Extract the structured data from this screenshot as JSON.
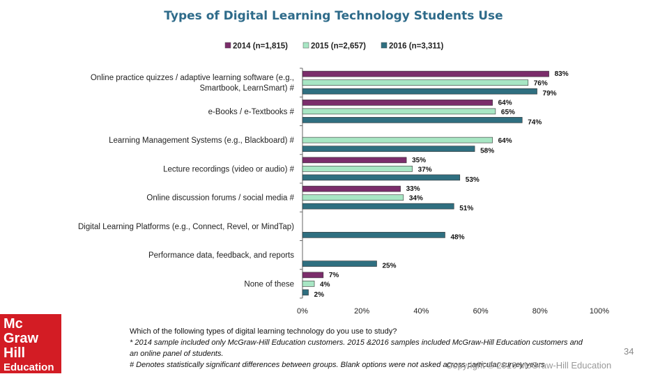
{
  "chart_data": {
    "type": "bar",
    "orientation": "horizontal",
    "title": "Types of Digital Learning Technology Students Use",
    "categories": [
      [
        "Online practice quizzes / adaptive learning software (e.g.,",
        "Smartbook, LearnSmart) #"
      ],
      [
        "e-Books / e-Textbooks #"
      ],
      [
        "Learning Management Systems (e.g., Blackboard) #"
      ],
      [
        "Lecture recordings (video or audio) #"
      ],
      [
        "Online discussion forums / social media #"
      ],
      [
        "Digital Learning Platforms (e.g., Connect, Revel, or MindTap)"
      ],
      [
        "Performance data, feedback, and reports"
      ],
      [
        "None of these"
      ]
    ],
    "series": [
      {
        "name": "2014 (n=1,815)",
        "color": "#7b2d6b",
        "values": [
          83,
          64,
          null,
          35,
          33,
          null,
          null,
          7
        ]
      },
      {
        "name": "2015 (n=2,657)",
        "color": "#a8e6c4",
        "values": [
          76,
          65,
          64,
          37,
          34,
          null,
          null,
          4
        ]
      },
      {
        "name": "2016 (n=3,311)",
        "color": "#2f6f80",
        "values": [
          79,
          74,
          58,
          53,
          51,
          48,
          25,
          2
        ]
      }
    ],
    "xlim": [
      0,
      100
    ],
    "xticks": [
      "0%",
      "20%",
      "40%",
      "60%",
      "80%",
      "100%"
    ],
    "value_suffix": "%",
    "legend_position": "top",
    "grid": false
  },
  "footnotes": {
    "question": "Which of the following types of  digital learning technology do you use to study?",
    "note1": "* 2014 sample included only McGraw-Hill Education customers. 2015 &2016 samples included McGraw-Hill Education customers and an online panel of students.",
    "note2": "# Denotes statistically significant differences between groups. Blank options were not asked across particular survey years."
  },
  "logo": {
    "line1": "Mc",
    "line2": "Graw",
    "line3": "Hill",
    "line4": "Education"
  },
  "page_number": "34",
  "copyright": "Copyright © 2016 McGraw-Hill Education"
}
